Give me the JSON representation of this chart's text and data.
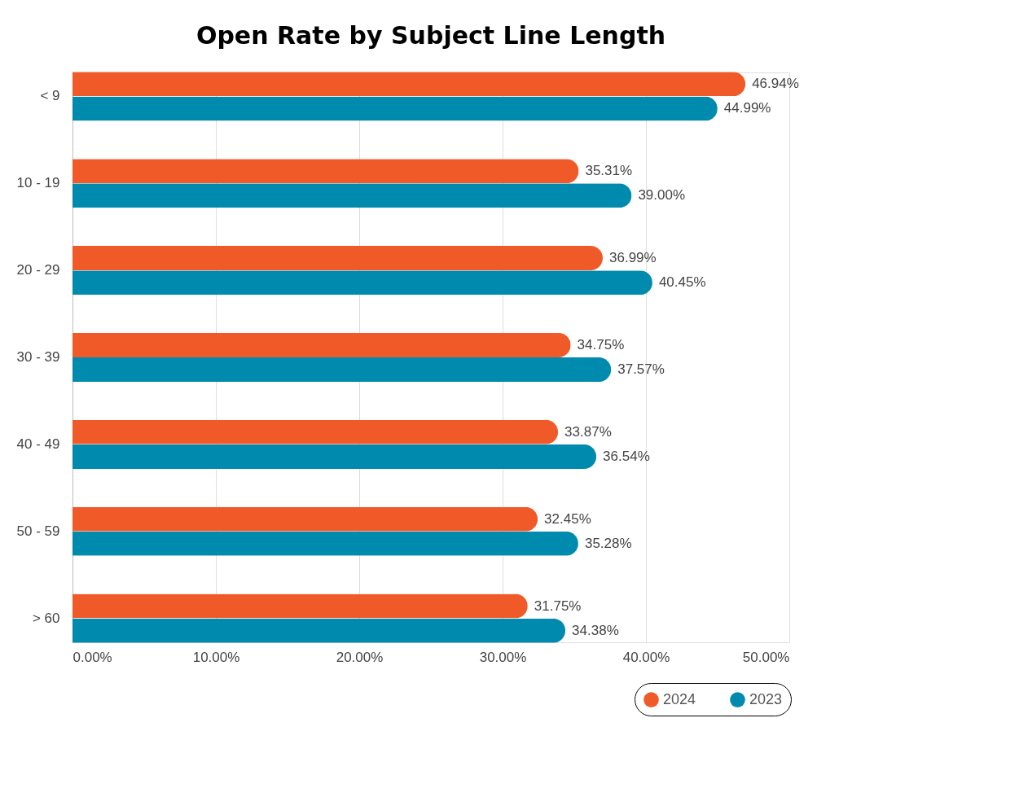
{
  "chart_data": {
    "type": "bar",
    "orientation": "horizontal",
    "title": "Open Rate by Subject Line Length",
    "categories": [
      "< 9",
      "10 - 19",
      "20 - 29",
      "30 - 39",
      "40 - 49",
      "50 - 59",
      "> 60"
    ],
    "series": [
      {
        "name": "2024",
        "color": "#f05a28",
        "values": [
          46.94,
          35.31,
          36.99,
          34.75,
          33.87,
          32.45,
          31.75
        ],
        "value_labels": [
          "46.94%",
          "35.31%",
          "36.99%",
          "34.75%",
          "33.87%",
          "32.45%",
          "31.75%"
        ]
      },
      {
        "name": "2023",
        "color": "#008bae",
        "values": [
          44.99,
          39.0,
          40.45,
          37.57,
          36.54,
          35.28,
          34.38
        ],
        "value_labels": [
          "44.99%",
          "39.00%",
          "40.45%",
          "37.57%",
          "36.54%",
          "35.28%",
          "34.38%"
        ]
      }
    ],
    "xlim": [
      0,
      50
    ],
    "xticks": [
      {
        "value": 0,
        "label": "0.00%"
      },
      {
        "value": 10,
        "label": "10.00%"
      },
      {
        "value": 20,
        "label": "20.00%"
      },
      {
        "value": 30,
        "label": "30.00%"
      },
      {
        "value": 40,
        "label": "40.00%"
      },
      {
        "value": 50,
        "label": "50.00%"
      }
    ],
    "grid": "x",
    "legend": "bottom right"
  }
}
